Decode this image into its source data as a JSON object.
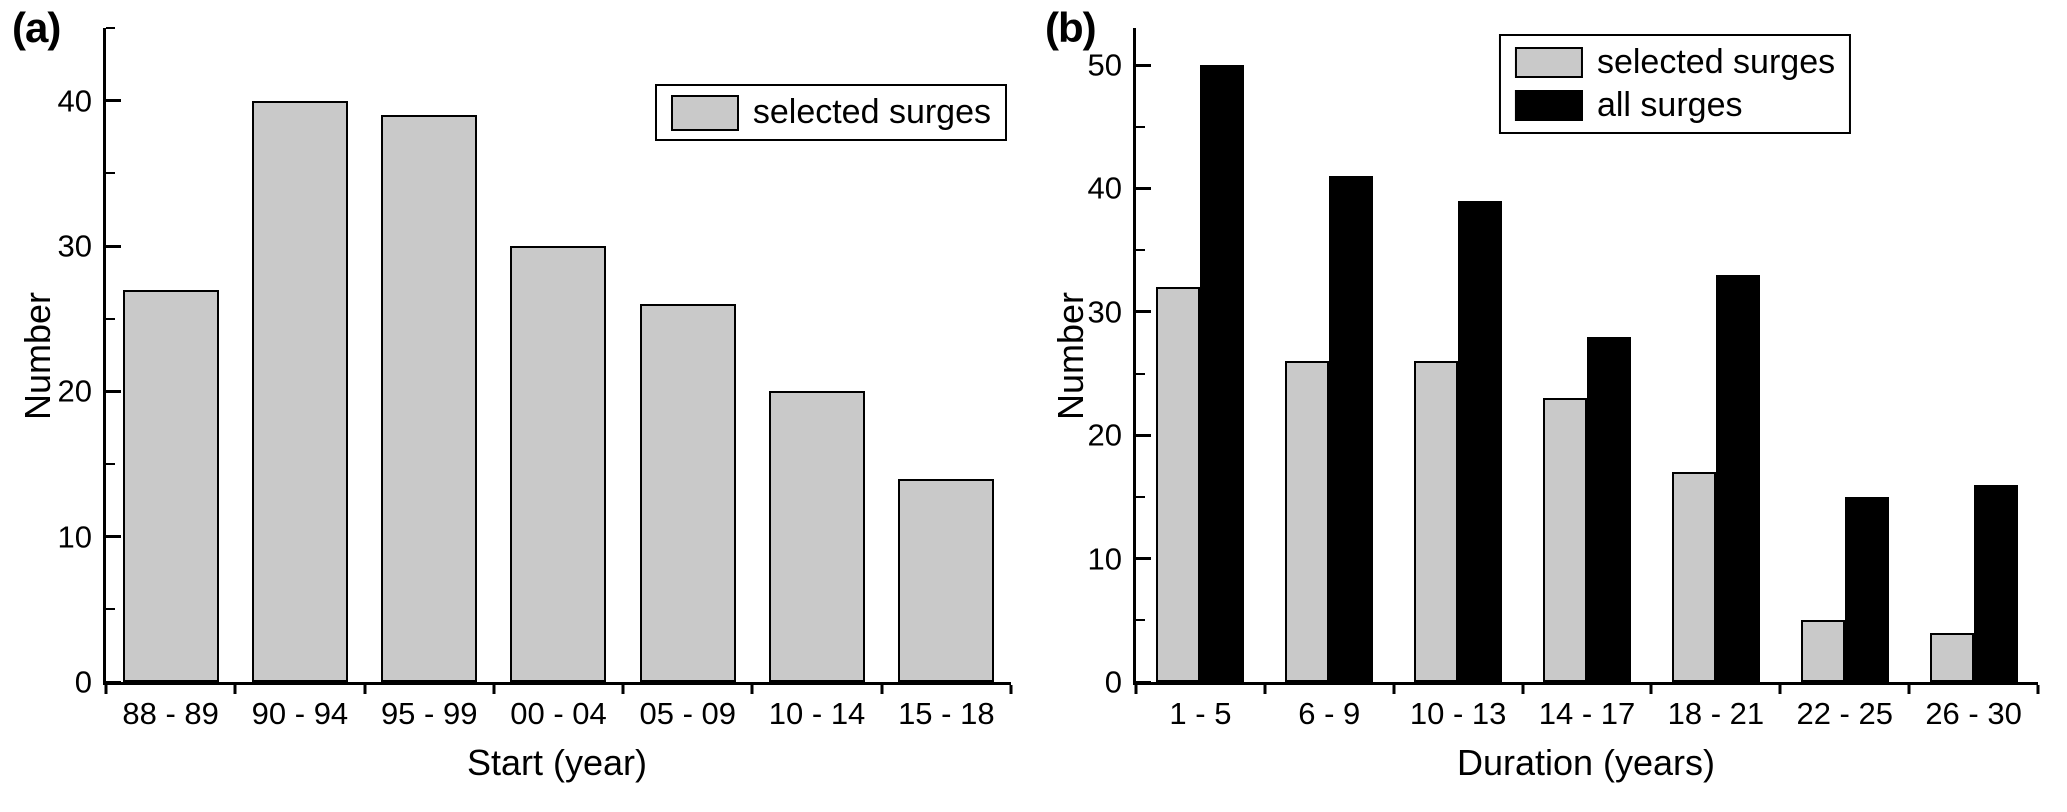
{
  "figure": {
    "background": "#ffffff",
    "axis_color": "#000000"
  },
  "colors": {
    "bar_fill_gray": "#c9c9c9",
    "bar_fill_black": "#000000",
    "bar_border": "#000000"
  },
  "chart_data": [
    {
      "type": "bar",
      "panel_label": "(a)",
      "title": "",
      "xlabel": "Start (year)",
      "ylabel": "Number",
      "categories": [
        "88 - 89",
        "90 - 94",
        "95 - 99",
        "00 - 04",
        "05 - 09",
        "10 - 14",
        "15 - 18"
      ],
      "series": [
        {
          "name": "selected surges",
          "color": "#c9c9c9",
          "values": [
            27,
            40,
            39,
            30,
            26,
            20,
            14
          ]
        }
      ],
      "ylim": [
        0,
        45
      ],
      "yticks": [
        0,
        10,
        20,
        30,
        40
      ],
      "yminor_step": 5,
      "grid": false,
      "legend_position": "top-right"
    },
    {
      "type": "bar",
      "panel_label": "(b)",
      "title": "",
      "xlabel": "Duration (years)",
      "ylabel": "Number",
      "categories": [
        "1 - 5",
        "6 - 9",
        "10 - 13",
        "14 - 17",
        "18 - 21",
        "22 - 25",
        "26 - 30"
      ],
      "series": [
        {
          "name": "selected surges",
          "color": "#c9c9c9",
          "values": [
            32,
            26,
            26,
            23,
            17,
            5,
            4
          ]
        },
        {
          "name": "all surges",
          "color": "#000000",
          "values": [
            50,
            41,
            39,
            28,
            33,
            15,
            16
          ]
        }
      ],
      "ylim": [
        0,
        53
      ],
      "yticks": [
        0,
        10,
        20,
        30,
        40,
        50
      ],
      "yminor_step": 5,
      "grid": false,
      "legend_position": "top-center"
    }
  ]
}
